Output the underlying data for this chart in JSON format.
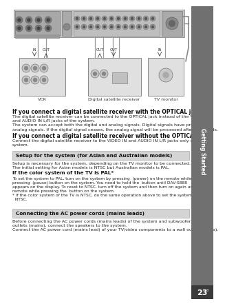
{
  "page_bg": "#ffffff",
  "sidebar_color": "#707070",
  "sidebar_text": "Getting Started",
  "sidebar_text_color": "#ffffff",
  "page_number": "23",
  "page_number_color": "#ffffff",
  "page_number_bg": "#3a3a3a",
  "heading1": "If you connect a digital satellite receiver with the OPTICAL jack",
  "body1_lines": [
    "The digital satellite receiver can be connected to the OPTICAL jack instead of the VIDEO IN",
    "and AUDIO IN L/R jacks of the system.",
    "The system can accept both the digital and analog signals. Digital signals have priority over",
    "analog signals. If the digital signal ceases, the analog signal will be processed after 2 seconds."
  ],
  "heading2": "If you connect a digital satellite receiver without the OPTICAL jack",
  "body2_lines": [
    "Connect the digital satellite receiver to the VIDEO IN and AUDIO IN L/R jacks only of the",
    "system."
  ],
  "box1_title": "Setup for the system (for Asian and Australian models)",
  "box1_bg": "#d4d4d4",
  "box1_body_lines": [
    "Setup is necessary for the system, depending on the TV monitor to be connected.",
    "The initial setting for Asian models is NTSC but Australian models is PAL."
  ],
  "box1_sub_heading": "If the color system of the TV is PAL*",
  "box1_sub_body_lines": [
    "To set the system to PAL, turn on the system by pressing  (power) on the remote while",
    "pressing  (pause) button on the system. You need to hold the  button until DAV-S888",
    "appears on the display. To reset to NTSC, turn off the system and then turn on again using the",
    "remote while pressing the  button on the system.",
    "* If the color system of the TV is NTSC, do the same operation above to set the system to",
    "  NTSC."
  ],
  "box2_title": "Connecting the AC power cords (mains leads)",
  "box2_bg": "#d4d4d4",
  "box2_body_lines": [
    "Before connecting the AC power cords (mains leads) of the system and subwoofer to wall",
    "outlets (mains), connect the speakers to the system.",
    "Connect the AC power cord (mains lead) of your TV/video components to a wall outlet (mains)."
  ],
  "diagram_labels": [
    "VCR",
    "Digital satellite receiver",
    "TV monitor"
  ],
  "wire_color": "#999999",
  "device_bg": "#bbbbbb",
  "sub_device_bg": "#e0e0e0",
  "connector_color": "#888888"
}
